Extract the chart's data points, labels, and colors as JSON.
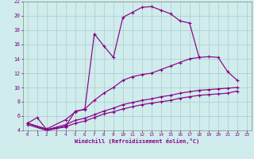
{
  "xlabel": "Windchill (Refroidissement éolien,°C)",
  "bg_color": "#d0ecec",
  "grid_color": "#aacccc",
  "line_color": "#880088",
  "xlim": [
    -0.5,
    23.5
  ],
  "ylim": [
    4,
    22
  ],
  "yticks": [
    4,
    6,
    8,
    10,
    12,
    14,
    16,
    18,
    20,
    22
  ],
  "xticks": [
    0,
    1,
    2,
    3,
    4,
    5,
    6,
    7,
    8,
    9,
    10,
    11,
    12,
    13,
    14,
    15,
    16,
    17,
    18,
    19,
    20,
    21,
    22,
    23
  ],
  "series1_x": [
    0,
    1,
    2,
    3,
    4,
    5,
    6,
    7,
    8,
    9,
    10,
    11,
    12,
    13,
    14,
    15,
    16,
    17,
    18
  ],
  "series1_y": [
    5.0,
    5.8,
    4.1,
    4.3,
    4.6,
    6.7,
    6.9,
    17.5,
    15.8,
    14.2,
    19.8,
    20.5,
    21.2,
    21.3,
    20.8,
    20.3,
    19.3,
    19.0,
    14.2
  ],
  "series2_x": [
    0,
    2,
    4,
    5,
    6,
    7,
    8,
    9,
    10,
    11,
    12,
    13,
    14,
    15,
    16,
    17,
    18,
    19,
    20,
    21,
    22
  ],
  "series2_y": [
    5.0,
    4.2,
    5.5,
    6.6,
    7.0,
    8.2,
    9.2,
    10.0,
    11.0,
    11.5,
    11.8,
    12.0,
    12.5,
    13.0,
    13.5,
    14.0,
    14.2,
    14.3,
    14.2,
    12.2,
    11.0
  ],
  "series3_x": [
    0,
    2,
    4,
    5,
    6,
    7,
    8,
    9,
    10,
    11,
    12,
    13,
    14,
    15,
    16,
    17,
    18,
    19,
    20,
    21,
    22
  ],
  "series3_y": [
    5.0,
    4.1,
    4.8,
    5.4,
    5.7,
    6.2,
    6.7,
    7.1,
    7.6,
    7.9,
    8.2,
    8.4,
    8.7,
    8.9,
    9.2,
    9.4,
    9.6,
    9.7,
    9.8,
    9.9,
    10.0
  ],
  "series4_x": [
    0,
    2,
    4,
    5,
    6,
    7,
    8,
    9,
    10,
    11,
    12,
    13,
    14,
    15,
    16,
    17,
    18,
    19,
    20,
    21,
    22
  ],
  "series4_y": [
    4.8,
    4.0,
    4.5,
    5.0,
    5.3,
    5.8,
    6.3,
    6.6,
    7.0,
    7.3,
    7.6,
    7.8,
    8.0,
    8.2,
    8.5,
    8.7,
    8.9,
    9.0,
    9.1,
    9.2,
    9.5
  ]
}
